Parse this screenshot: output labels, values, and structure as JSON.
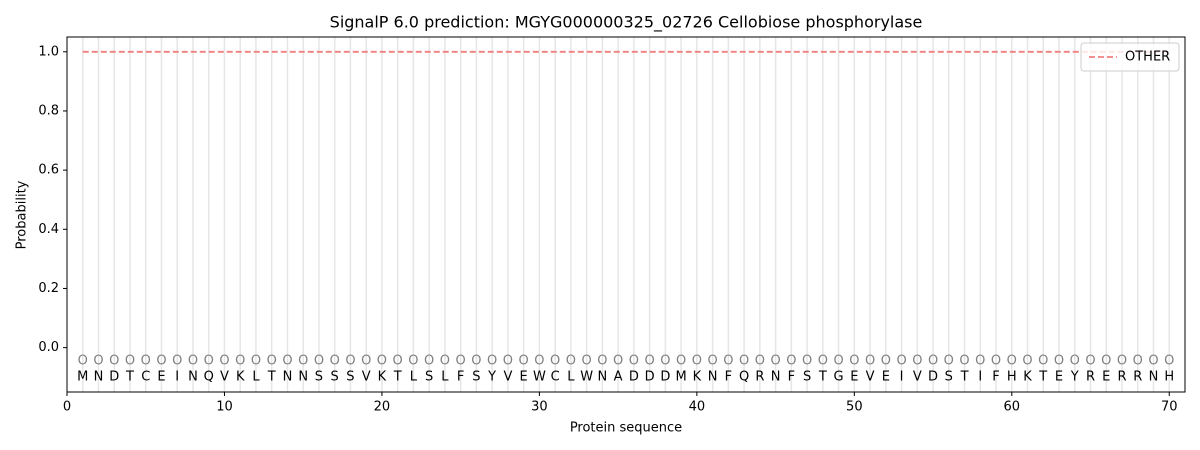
{
  "chart_data": {
    "type": "line",
    "title": "SignalP 6.0 prediction: MGYG000000325_02726 Cellobiose phosphorylase",
    "x_label": "Protein sequence",
    "y_label": "Probability",
    "x": [
      1,
      2,
      3,
      4,
      5,
      6,
      7,
      8,
      9,
      10,
      11,
      12,
      13,
      14,
      15,
      16,
      17,
      18,
      19,
      20,
      21,
      22,
      23,
      24,
      25,
      26,
      27,
      28,
      29,
      30,
      31,
      32,
      33,
      34,
      35,
      36,
      37,
      38,
      39,
      40,
      41,
      42,
      43,
      44,
      45,
      46,
      47,
      48,
      49,
      50,
      51,
      52,
      53,
      54,
      55,
      56,
      57,
      58,
      59,
      60,
      61,
      62,
      63,
      64,
      65,
      66,
      67,
      68,
      69,
      70
    ],
    "sequence": [
      "M",
      "N",
      "D",
      "T",
      "C",
      "E",
      "I",
      "N",
      "Q",
      "V",
      "K",
      "L",
      "T",
      "N",
      "N",
      "S",
      "S",
      "S",
      "V",
      "K",
      "T",
      "L",
      "S",
      "L",
      "F",
      "S",
      "Y",
      "V",
      "E",
      "W",
      "C",
      "L",
      "W",
      "N",
      "A",
      "D",
      "D",
      "D",
      "M",
      "K",
      "N",
      "F",
      "Q",
      "R",
      "N",
      "F",
      "S",
      "T",
      "G",
      "E",
      "V",
      "E",
      "I",
      "V",
      "D",
      "S",
      "T",
      "I",
      "F",
      "H",
      "K",
      "T",
      "E",
      "Y",
      "R",
      "E",
      "R",
      "R",
      "N",
      "H"
    ],
    "predicted_labels": [
      "O",
      "O",
      "O",
      "O",
      "O",
      "O",
      "O",
      "O",
      "O",
      "O",
      "O",
      "O",
      "O",
      "O",
      "O",
      "O",
      "O",
      "O",
      "O",
      "O",
      "O",
      "O",
      "O",
      "O",
      "O",
      "O",
      "O",
      "O",
      "O",
      "O",
      "O",
      "O",
      "O",
      "O",
      "O",
      "O",
      "O",
      "O",
      "O",
      "O",
      "O",
      "O",
      "O",
      "O",
      "O",
      "O",
      "O",
      "O",
      "O",
      "O",
      "O",
      "O",
      "O",
      "O",
      "O",
      "O",
      "O",
      "O",
      "O",
      "O",
      "O",
      "O",
      "O",
      "O",
      "O",
      "O",
      "O",
      "O",
      "O",
      "O"
    ],
    "series": [
      {
        "name": "OTHER",
        "color": "#f08080",
        "dash": true,
        "values": [
          1,
          1,
          1,
          1,
          1,
          1,
          1,
          1,
          1,
          1,
          1,
          1,
          1,
          1,
          1,
          1,
          1,
          1,
          1,
          1,
          1,
          1,
          1,
          1,
          1,
          1,
          1,
          1,
          1,
          1,
          1,
          1,
          1,
          1,
          1,
          1,
          1,
          1,
          1,
          1,
          1,
          1,
          1,
          1,
          1,
          1,
          1,
          1,
          1,
          1,
          1,
          1,
          1,
          1,
          1,
          1,
          1,
          1,
          1,
          1,
          1,
          1,
          1,
          1,
          1,
          1,
          1,
          1,
          1,
          1
        ]
      }
    ],
    "xlim": [
      0,
      71
    ],
    "ylim": [
      -0.15,
      1.05
    ],
    "xticks": [
      0,
      10,
      20,
      30,
      40,
      50,
      60,
      70
    ],
    "yticks": [
      {
        "value": 0,
        "label": "0.0"
      },
      {
        "value": 0.2,
        "label": "0.2"
      },
      {
        "value": 0.4,
        "label": "0.4"
      },
      {
        "value": 0.6,
        "label": "0.6"
      },
      {
        "value": 0.8,
        "label": "0.8"
      },
      {
        "value": 1,
        "label": "1.0"
      }
    ],
    "legend": "upper right"
  }
}
